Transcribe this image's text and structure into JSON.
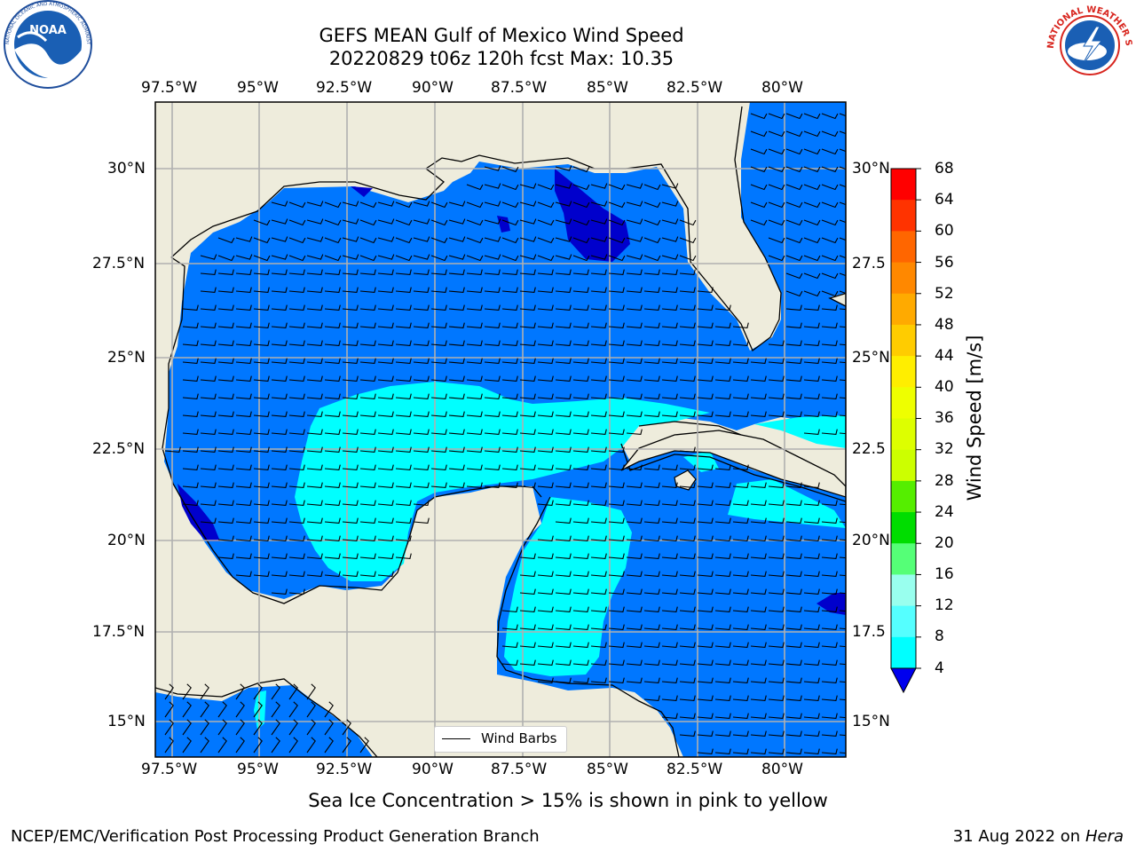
{
  "header": {
    "title_line1": "GEFS MEAN Gulf of Mexico Wind Speed",
    "title_line2": "20220829 t06z 120h fcst   Max: 10.35"
  },
  "logos": {
    "noaa": {
      "text": "NOAA",
      "ring_text": "NATIONAL OCEANIC AND ATMOSPHERIC ADMINISTRATION · U.S. DEPARTMENT OF COMMERCE"
    },
    "nws": {
      "ring_text": "NATIONAL WEATHER SERVICE"
    }
  },
  "map": {
    "lon_labels": [
      "97.5°W",
      "95°W",
      "92.5°W",
      "90°W",
      "87.5°W",
      "85°W",
      "82.5°W",
      "80°W"
    ],
    "lat_labels_left": [
      "30°N",
      "27.5°N",
      "25°N",
      "22.5°N",
      "20°N",
      "17.5°N",
      "15°N"
    ],
    "lat_labels_right": [
      "30°N",
      "27.5",
      "25°N",
      "22.5",
      "20°N",
      "17.5",
      "15°N"
    ],
    "legend_label": "Wind Barbs"
  },
  "colorbar": {
    "label": "Wind Speed [m/s]",
    "ticks": [
      "68",
      "64",
      "60",
      "56",
      "52",
      "48",
      "44",
      "40",
      "36",
      "32",
      "28",
      "24",
      "20",
      "16",
      "12",
      "8",
      "4"
    ],
    "colors": [
      "#ff0000",
      "#ff3300",
      "#ff6600",
      "#ff8800",
      "#ffaa00",
      "#ffcc00",
      "#ffee00",
      "#eeff00",
      "#ddff00",
      "#ccff00",
      "#55ee00",
      "#00dd00",
      "#55ff77",
      "#99ffee",
      "#55ffff",
      "#00ffff",
      "#0077ff"
    ],
    "extend_color": "#0000ee"
  },
  "colors": {
    "land": "#eeecdc",
    "wind_4_8": "#0077ff",
    "wind_8_12": "#00ffff",
    "wind_below_4": "#0000cc",
    "grid": "#b0b0b0"
  },
  "footer": {
    "note": "Sea Ice Concentration > 15% is shown in pink to yellow",
    "credit": "NCEP/EMC/Verification Post Processing Product Generation Branch",
    "date": "31 Aug 2022 on",
    "machine": "Hera"
  }
}
